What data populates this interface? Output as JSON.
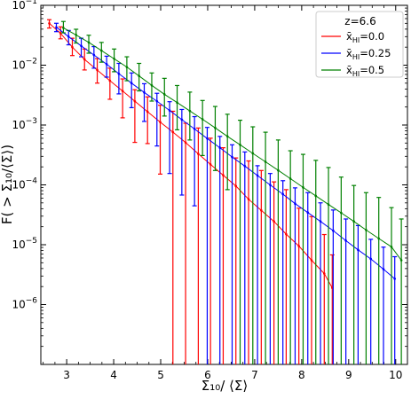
{
  "chart_data": {
    "type": "line",
    "title": "",
    "xlabel": "Σ₁₀/ ⟨Σ⟩",
    "ylabel": "F( > Σ₁₀/⟨Σ⟩)",
    "xlim": [
      2.45,
      10.25
    ],
    "ylim_log10": [
      -7,
      -1
    ],
    "y_scale": "log",
    "x_ticks": [
      "3",
      "4",
      "5",
      "6",
      "7",
      "8",
      "9",
      "10"
    ],
    "y_ticks": [
      {
        "mant": "10",
        "exp": "−6",
        "value": -6
      },
      {
        "mant": "10",
        "exp": "−5",
        "value": -5
      },
      {
        "mant": "10",
        "exp": "−4",
        "value": -4
      },
      {
        "mant": "10",
        "exp": "−3",
        "value": -3
      },
      {
        "mant": "10",
        "exp": "−2",
        "value": -2
      },
      {
        "mant": "10",
        "exp": "−1",
        "value": -1
      }
    ],
    "legend": {
      "position": "top-right",
      "title": "z=6.6"
    },
    "series": [
      {
        "name_base": "x̄",
        "name_sub": "HI",
        "name_val": "=0.0",
        "color": "#ff0000",
        "x": [
          2.63,
          2.87,
          3.12,
          3.38,
          3.65,
          3.92,
          4.19,
          4.45,
          4.72,
          4.99,
          5.26,
          5.53,
          5.8,
          6.06,
          6.33,
          6.6,
          6.87,
          7.14,
          7.41,
          7.67,
          7.94,
          8.21,
          8.48,
          8.65
        ],
        "y": [
          0.05,
          0.034,
          0.02,
          0.0125,
          0.0083,
          0.0055,
          0.0037,
          0.0025,
          0.00167,
          0.00112,
          0.00076,
          0.00051,
          0.00033,
          0.00022,
          0.000145,
          9.55e-05,
          5.75e-05,
          3.75e-05,
          2.45e-05,
          1.5e-05,
          9.5e-06,
          5.5e-06,
          3.3e-06,
          1.9e-06
        ],
        "yerr_lo_log10": [
          -1.38,
          -1.56,
          -1.84,
          -2.08,
          -2.3,
          -2.57,
          -2.88,
          -3.29,
          -3.31,
          -3.82,
          -7,
          -7,
          -7,
          -7,
          -7,
          -7,
          -7,
          -7,
          -7,
          -7,
          -7,
          -7,
          -7,
          -7
        ],
        "yerr_hi_log10": [
          -1.24,
          -1.36,
          -1.55,
          -1.73,
          -1.89,
          -2.05,
          -2.23,
          -2.41,
          -2.53,
          -2.67,
          -2.77,
          -2.97,
          -3.05,
          -3.22,
          -3.38,
          -3.55,
          -3.6,
          -3.76,
          -3.95,
          -4.08,
          -4.39,
          -4.53,
          -4.83,
          -5.17
        ]
      },
      {
        "name_base": "x̄",
        "name_sub": "HI",
        "name_val": "=0.25",
        "color": "#0000ff",
        "x": [
          2.78,
          3.04,
          3.31,
          3.58,
          3.85,
          4.11,
          4.38,
          4.65,
          4.92,
          5.19,
          5.45,
          5.72,
          5.99,
          6.26,
          6.52,
          6.79,
          7.06,
          7.33,
          7.6,
          7.86,
          8.13,
          8.4,
          8.67,
          8.94,
          9.2,
          9.47,
          9.74,
          9.98
        ],
        "y": [
          0.043,
          0.03,
          0.021,
          0.0148,
          0.0104,
          0.0072,
          0.005,
          0.0035,
          0.0025,
          0.00175,
          0.00123,
          0.000862,
          0.000596,
          0.000418,
          0.000292,
          0.000206,
          0.000143,
          9.98e-05,
          7e-05,
          4.85e-05,
          3.45e-05,
          2.45e-05,
          1.72e-05,
          1.17e-05,
          8.2e-06,
          5.8e-06,
          3.9e-06,
          2.7e-06
        ],
        "yerr_lo_log10": [
          -1.44,
          -1.66,
          -1.86,
          -2.05,
          -2.2,
          -2.48,
          -2.71,
          -2.94,
          -3.35,
          -3.81,
          -4.17,
          -4.35,
          -7,
          -7,
          -7,
          -7,
          -7,
          -7,
          -7,
          -7,
          -7,
          -7,
          -7,
          -7,
          -7,
          -7,
          -7,
          -7
        ],
        "yerr_hi_log10": [
          -1.3,
          -1.42,
          -1.55,
          -1.69,
          -1.85,
          -1.97,
          -2.13,
          -2.31,
          -2.47,
          -2.61,
          -2.74,
          -2.86,
          -3.04,
          -3.19,
          -3.33,
          -3.45,
          -3.68,
          -3.81,
          -3.93,
          -4.05,
          -4.13,
          -4.3,
          -4.42,
          -4.57,
          -4.68,
          -4.91,
          -5.04,
          -5.2
        ]
      },
      {
        "name_base": "x̄",
        "name_sub": "HI",
        "name_val": "=0.5",
        "color": "#008000",
        "x": [
          2.93,
          3.2,
          3.47,
          3.74,
          4.01,
          4.28,
          4.54,
          4.81,
          5.08,
          5.35,
          5.62,
          5.89,
          6.16,
          6.42,
          6.69,
          6.96,
          7.23,
          7.5,
          7.76,
          8.03,
          8.3,
          8.57,
          8.84,
          9.11,
          9.37,
          9.64,
          9.91,
          10.12
        ],
        "y": [
          0.042,
          0.032,
          0.024,
          0.0175,
          0.0128,
          0.0093,
          0.0066,
          0.0046,
          0.00326,
          0.00237,
          0.00172,
          0.00125,
          0.000896,
          0.000646,
          0.000467,
          0.000336,
          0.000243,
          0.000175,
          0.000127,
          9.07e-05,
          6.54e-05,
          4.71e-05,
          3.41e-05,
          2.45e-05,
          1.76e-05,
          1.27e-05,
          9.2e-06,
          5.5e-06
        ],
        "yerr_lo_log10": [
          -1.46,
          -1.63,
          -1.8,
          -1.95,
          -2.11,
          -2.26,
          -2.43,
          -2.6,
          -2.85,
          -3.08,
          -3.25,
          -3.51,
          -3.76,
          -4.08,
          -7,
          -7,
          -7,
          -7,
          -7,
          -7,
          -7,
          -7,
          -7,
          -7,
          -7,
          -7,
          -7,
          -7
        ],
        "yerr_hi_log10": [
          -1.27,
          -1.4,
          -1.5,
          -1.62,
          -1.73,
          -1.86,
          -1.97,
          -2.13,
          -2.22,
          -2.34,
          -2.45,
          -2.59,
          -2.69,
          -2.82,
          -2.92,
          -3.03,
          -3.12,
          -3.25,
          -3.43,
          -3.49,
          -3.59,
          -3.71,
          -3.87,
          -4.01,
          -4.13,
          -4.21,
          -4.38,
          -4.57
        ]
      }
    ]
  }
}
